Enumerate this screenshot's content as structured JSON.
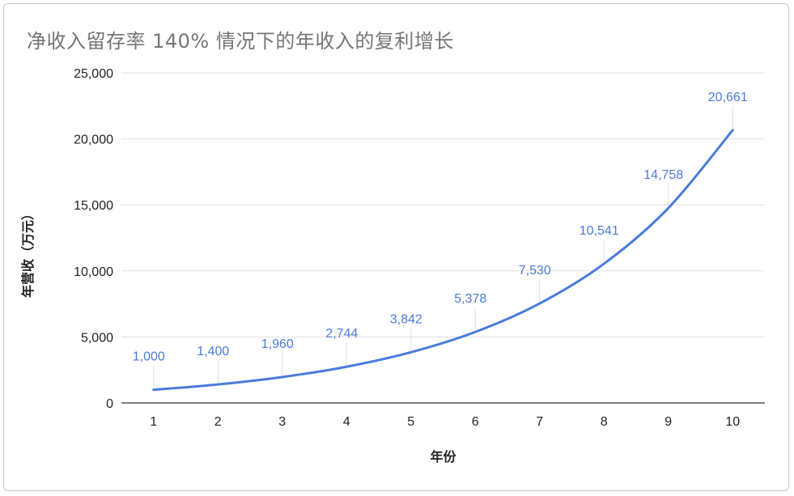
{
  "chart_data": {
    "type": "line",
    "title": "净收入留存率 140% 情况下的年收入的复利增长",
    "xlabel": "年份",
    "ylabel": "年营收（万元）",
    "categories": [
      "1",
      "2",
      "3",
      "4",
      "5",
      "6",
      "7",
      "8",
      "9",
      "10"
    ],
    "series": [
      {
        "values": [
          1000,
          1400,
          1960,
          2744,
          3842,
          5378,
          7530,
          10541,
          14758,
          20661
        ]
      }
    ],
    "data_labels": [
      "1,000",
      "1,400",
      "1,960",
      "2,744",
      "3,842",
      "5,378",
      "7,530",
      "10,541",
      "14,758",
      "20,661"
    ],
    "ylim": [
      0,
      25000
    ],
    "yticks": [
      0,
      5000,
      10000,
      15000,
      20000,
      25000
    ],
    "ytick_labels": [
      "0",
      "5,000",
      "10,000",
      "15,000",
      "20,000",
      "25,000"
    ],
    "grid": true,
    "legend": "none",
    "colors": {
      "line": "#4a7bdc",
      "label": "#4a7bdc",
      "grid": "#e0e0e0",
      "axis": "#333333",
      "title": "#757575"
    }
  }
}
